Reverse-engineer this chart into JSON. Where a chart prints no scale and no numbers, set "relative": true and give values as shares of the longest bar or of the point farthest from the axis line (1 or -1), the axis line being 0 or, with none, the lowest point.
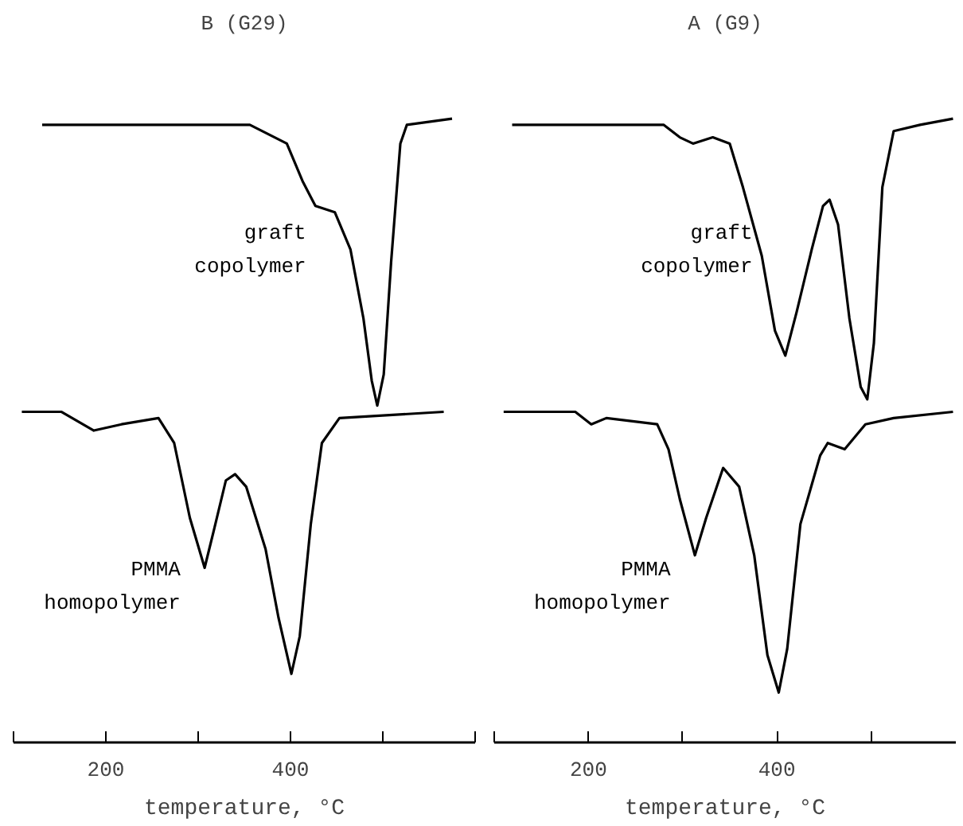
{
  "chart_data": [
    {
      "type": "line",
      "title": "B (G29)",
      "xlabel": "temperature, °C",
      "relative": true,
      "xlim": [
        100,
        600
      ],
      "xticks": [
        {
          "value": 100,
          "label": null
        },
        200,
        {
          "value": 300,
          "label": null
        },
        400,
        {
          "value": 500,
          "label": null
        },
        {
          "value": 600,
          "label": null
        }
      ],
      "grid": false,
      "tick_labels": "x",
      "series": [
        {
          "name": "graft copolymer",
          "color": "#000000",
          "x": [
            131,
            356,
            396,
            413,
            427,
            448,
            465,
            479,
            488,
            494,
            501,
            509,
            519,
            526,
            575
          ],
          "values": [
            0.99,
            0.99,
            0.96,
            0.9,
            0.86,
            0.85,
            0.79,
            0.68,
            0.58,
            0.54,
            0.59,
            0.77,
            0.96,
            0.99,
            1.0
          ]
        },
        {
          "name": "PMMA homopolymer",
          "color": "#000000",
          "x": [
            109,
            152,
            187,
            217,
            257,
            274,
            291,
            307,
            317,
            330,
            340,
            352,
            373,
            387,
            401,
            410,
            422,
            434,
            453,
            566
          ],
          "values": [
            0.53,
            0.53,
            0.5,
            0.51,
            0.52,
            0.48,
            0.36,
            0.28,
            0.34,
            0.42,
            0.43,
            0.41,
            0.31,
            0.2,
            0.11,
            0.17,
            0.35,
            0.48,
            0.52,
            0.53
          ]
        }
      ]
    },
    {
      "type": "line",
      "title": "A (G9)",
      "xlabel": "temperature, °C",
      "relative": true,
      "xlim": [
        100,
        590
      ],
      "xticks": [
        {
          "value": 100,
          "label": null
        },
        200,
        {
          "value": 300,
          "label": null
        },
        400,
        {
          "value": 500,
          "label": null
        }
      ],
      "grid": false,
      "tick_labels": "x",
      "series": [
        {
          "name": "graft copolymer",
          "color": "#000000",
          "x": [
            119,
            280,
            297,
            311,
            332,
            350,
            364,
            384,
            398,
            409,
            421,
            437,
            449,
            456,
            465,
            477,
            489,
            496,
            503,
            512,
            524,
            552,
            587
          ],
          "values": [
            0.99,
            0.99,
            0.97,
            0.96,
            0.97,
            0.96,
            0.89,
            0.78,
            0.66,
            0.62,
            0.69,
            0.79,
            0.86,
            0.87,
            0.83,
            0.68,
            0.57,
            0.55,
            0.64,
            0.89,
            0.98,
            0.99,
            1.0
          ]
        },
        {
          "name": "PMMA homopolymer",
          "color": "#000000",
          "x": [
            110,
            186,
            203,
            219,
            273,
            285,
            297,
            313,
            325,
            343,
            360,
            376,
            390,
            402,
            411,
            425,
            446,
            454,
            472,
            494,
            524,
            587
          ],
          "values": [
            0.53,
            0.53,
            0.51,
            0.52,
            0.51,
            0.47,
            0.39,
            0.3,
            0.36,
            0.44,
            0.41,
            0.3,
            0.14,
            0.08,
            0.15,
            0.35,
            0.46,
            0.48,
            0.47,
            0.51,
            0.52,
            0.53
          ]
        }
      ]
    }
  ]
}
